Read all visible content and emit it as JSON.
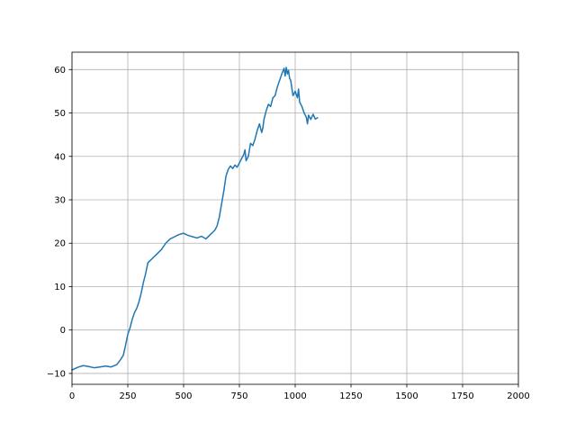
{
  "chart_data": {
    "type": "line",
    "title": "",
    "xlabel": "",
    "ylabel": "",
    "xlim": [
      0,
      2000
    ],
    "ylim": [
      -12.5,
      64
    ],
    "x_ticks": [
      0,
      250,
      500,
      750,
      1000,
      1250,
      1500,
      1750,
      2000
    ],
    "y_ticks": [
      -10,
      0,
      10,
      20,
      30,
      40,
      50,
      60
    ],
    "grid": true,
    "legend": "none",
    "series": [
      {
        "color": "#1f77b4",
        "x": [
          0,
          25,
          50,
          75,
          100,
          125,
          150,
          175,
          200,
          215,
          230,
          240,
          250,
          260,
          270,
          280,
          290,
          300,
          310,
          320,
          330,
          340,
          350,
          360,
          380,
          400,
          420,
          440,
          460,
          480,
          500,
          520,
          540,
          560,
          580,
          600,
          620,
          640,
          650,
          660,
          670,
          680,
          690,
          700,
          710,
          720,
          730,
          740,
          750,
          760,
          770,
          775,
          780,
          790,
          800,
          810,
          820,
          830,
          840,
          850,
          855,
          860,
          870,
          880,
          890,
          900,
          910,
          920,
          930,
          940,
          950,
          955,
          960,
          965,
          970,
          975,
          980,
          990,
          1000,
          1010,
          1015,
          1020,
          1030,
          1040,
          1050,
          1055,
          1060,
          1070,
          1080,
          1090,
          1100
        ],
        "values": [
          -9.2,
          -8.6,
          -8.2,
          -8.4,
          -8.7,
          -8.5,
          -8.3,
          -8.5,
          -8.0,
          -7.0,
          -5.8,
          -3.5,
          -1.0,
          0.5,
          2.5,
          4.0,
          5.0,
          6.5,
          8.5,
          11.0,
          13.0,
          15.5,
          16.0,
          16.5,
          17.5,
          18.5,
          20.0,
          21.0,
          21.5,
          22.0,
          22.3,
          21.8,
          21.5,
          21.2,
          21.6,
          21.0,
          22.0,
          23.0,
          24.0,
          26.0,
          29.0,
          32.0,
          35.5,
          37.0,
          37.8,
          37.2,
          38.0,
          37.5,
          38.5,
          39.5,
          40.5,
          41.5,
          39.0,
          40.0,
          43.0,
          42.5,
          44.0,
          46.0,
          47.5,
          45.5,
          46.5,
          48.5,
          50.5,
          52.0,
          51.5,
          53.5,
          54.0,
          56.0,
          57.5,
          59.0,
          60.3,
          58.5,
          60.5,
          59.0,
          59.8,
          58.0,
          57.5,
          54.0,
          55.0,
          53.5,
          55.5,
          52.5,
          51.5,
          50.0,
          49.0,
          47.5,
          49.5,
          48.5,
          49.7,
          48.6,
          48.9
        ]
      }
    ]
  }
}
